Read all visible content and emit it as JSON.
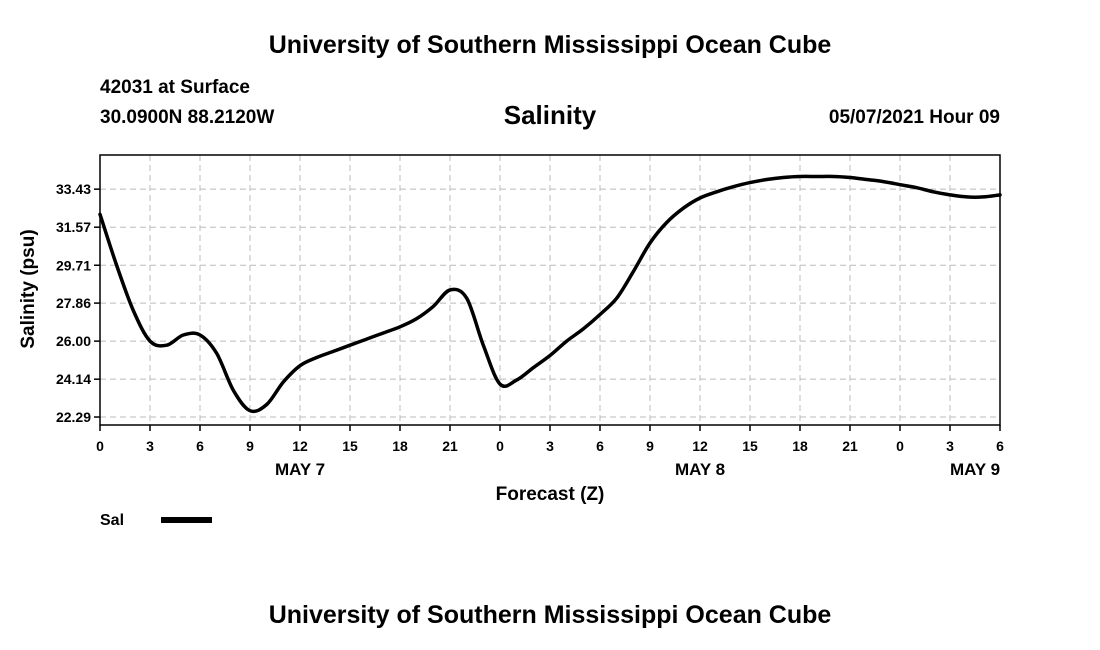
{
  "header": {
    "top_title": "University of Southern Mississippi Ocean Cube",
    "station_line": "42031 at Surface",
    "coords_line": "30.0900N  88.2120W",
    "date_line": "05/07/2021 Hour 09",
    "bottom_title": "University of Southern Mississippi Ocean Cube"
  },
  "chart_data": {
    "type": "line",
    "title": "Salinity",
    "xlabel": "Forecast (Z)",
    "ylabel": "Salinity (psu)",
    "xlim": [
      0,
      54
    ],
    "ylim": [
      21.9,
      35.1
    ],
    "x_ticks": [
      0,
      3,
      6,
      9,
      12,
      15,
      18,
      21,
      24,
      27,
      30,
      33,
      36,
      39,
      42,
      45,
      48,
      51,
      54
    ],
    "x_tick_labels": [
      "0",
      "3",
      "6",
      "9",
      "12",
      "15",
      "18",
      "21",
      "0",
      "3",
      "6",
      "9",
      "12",
      "15",
      "18",
      "21",
      "0",
      "3",
      "6"
    ],
    "day_labels": [
      {
        "x": 12,
        "text": "MAY 7"
      },
      {
        "x": 36,
        "text": "MAY 8"
      },
      {
        "x": 52.5,
        "text": "MAY 9"
      }
    ],
    "y_ticks": [
      22.29,
      24.14,
      26.0,
      27.86,
      29.71,
      31.57,
      33.43
    ],
    "y_tick_labels": [
      "22.29",
      "24.14",
      "26.00",
      "27.86",
      "29.71",
      "31.57",
      "33.43"
    ],
    "grid": true,
    "legend": [
      {
        "label": "Sal",
        "position": "bottom-left"
      }
    ],
    "series": [
      {
        "name": "Sal",
        "x": [
          0,
          1,
          2,
          3,
          4,
          5,
          6,
          7,
          8,
          9,
          10,
          11,
          12,
          13,
          14,
          15,
          16,
          17,
          18,
          19,
          20,
          21,
          22,
          23,
          24,
          25,
          26,
          27,
          28,
          29,
          30,
          31,
          32,
          33,
          34,
          35,
          36,
          37,
          38,
          39,
          40,
          41,
          42,
          43,
          44,
          45,
          46,
          47,
          48,
          49,
          50,
          51,
          52,
          53,
          54
        ],
        "values": [
          32.2,
          29.7,
          27.5,
          26.0,
          25.8,
          26.3,
          26.3,
          25.4,
          23.6,
          22.6,
          22.9,
          24.0,
          24.8,
          25.2,
          25.5,
          25.8,
          26.1,
          26.4,
          26.7,
          27.1,
          27.7,
          28.5,
          28.1,
          25.8,
          23.9,
          24.1,
          24.7,
          25.3,
          26.0,
          26.6,
          27.3,
          28.1,
          29.4,
          30.8,
          31.8,
          32.5,
          33.0,
          33.3,
          33.55,
          33.75,
          33.9,
          34.0,
          34.05,
          34.05,
          34.05,
          34.0,
          33.9,
          33.8,
          33.65,
          33.5,
          33.3,
          33.15,
          33.05,
          33.05,
          33.15
        ]
      }
    ]
  }
}
